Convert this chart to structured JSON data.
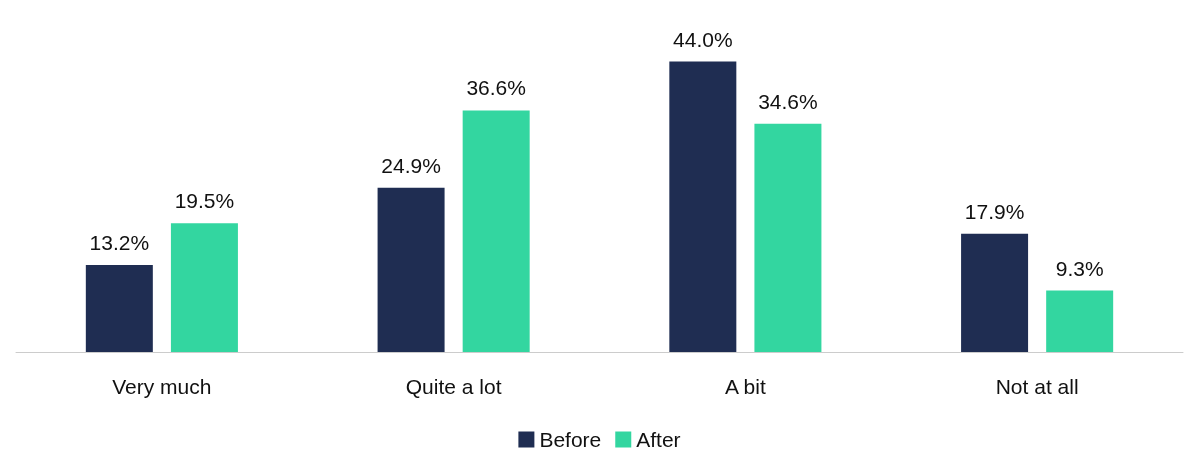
{
  "chart_data": {
    "type": "bar",
    "categories": [
      "Very much",
      "Quite a lot",
      "A bit",
      "Not at all"
    ],
    "series": [
      {
        "name": "Before",
        "color": "#1f2d52",
        "values": [
          13.2,
          24.9,
          44.0,
          17.9
        ],
        "value_labels": [
          "13.2%",
          "24.9%",
          "44.0%",
          "17.9%"
        ]
      },
      {
        "name": "After",
        "color": "#33d6a0",
        "values": [
          19.5,
          36.6,
          34.6,
          9.3
        ],
        "value_labels": [
          "19.5%",
          "36.6%",
          "34.6%",
          "9.3%"
        ]
      }
    ],
    "legend": "bottom"
  }
}
